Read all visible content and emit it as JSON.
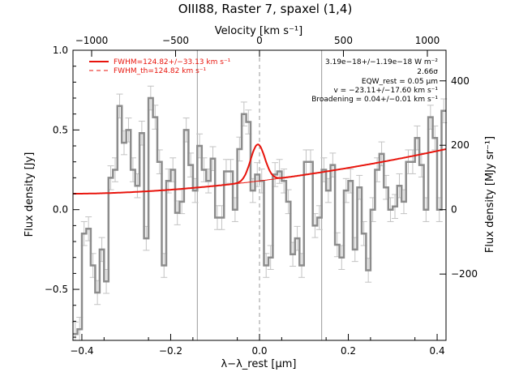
{
  "chart_data": {
    "type": "line",
    "title": "OIII88, Raster 7, spaxel (1,4)",
    "xlabel": "λ−λ_rest [μm]",
    "ylabel": "Flux density [Jy]",
    "ylabel_right": "Flux density [MJy sr⁻¹]",
    "xlabel_top": "Velocity [km s⁻¹]",
    "xlim": [
      -0.42,
      0.42
    ],
    "ylim": [
      -0.82,
      1.0
    ],
    "x_ticks": [
      -0.4,
      -0.2,
      0.0,
      0.2,
      0.4
    ],
    "x_tick_labels": [
      "−0.4",
      "−0.2",
      "0.0",
      "0.2",
      "0.4"
    ],
    "y_ticks": [
      -0.5,
      0.0,
      0.5,
      1.0
    ],
    "y_tick_labels": [
      "−0.5",
      "0.0",
      "0.5",
      "1.0"
    ],
    "top_ticks_x": [
      -0.378,
      -0.189,
      0.0,
      0.189,
      0.378
    ],
    "top_tick_labels": [
      "−1000",
      "−500",
      "0",
      "500",
      "1000"
    ],
    "right_ticks_y": [
      -0.5,
      -0.0,
      0.5,
      1.0
    ],
    "right_ticks_y_values": [
      -0.404,
      0.0,
      0.404,
      0.808
    ],
    "right_tick_labels": [
      "−200",
      "0",
      "200",
      "400"
    ],
    "vertical_lines_x": [
      -0.14,
      0.14
    ],
    "rest_line_x": 0.0,
    "series": [
      {
        "name": "",
        "x": [
          -0.415,
          -0.405,
          -0.395,
          -0.385,
          -0.375,
          -0.365,
          -0.355,
          -0.345,
          -0.335,
          -0.325,
          -0.315,
          -0.305,
          -0.295,
          -0.285,
          -0.275,
          -0.265,
          -0.255,
          -0.245,
          -0.235,
          -0.225,
          -0.215,
          -0.205,
          -0.195,
          -0.185,
          -0.175,
          -0.165,
          -0.155,
          -0.145,
          -0.135,
          -0.125,
          -0.115,
          -0.105,
          -0.095,
          -0.085,
          -0.075,
          -0.065,
          -0.055,
          -0.045,
          -0.035,
          -0.025,
          -0.015,
          -0.005,
          0.005,
          0.015,
          0.025,
          0.035,
          0.045,
          0.055,
          0.065,
          0.075,
          0.085,
          0.095,
          0.105,
          0.115,
          0.125,
          0.135,
          0.145,
          0.155,
          0.165,
          0.175,
          0.185,
          0.195,
          0.205,
          0.215,
          0.225,
          0.235,
          0.245,
          0.255,
          0.265,
          0.275,
          0.285,
          0.295,
          0.305,
          0.315,
          0.325,
          0.335,
          0.345,
          0.355,
          0.365,
          0.375,
          0.385,
          0.395,
          0.405,
          0.415
        ],
        "y": [
          -0.78,
          -0.75,
          -0.15,
          -0.12,
          -0.35,
          -0.52,
          -0.25,
          -0.45,
          0.2,
          0.25,
          0.65,
          0.42,
          0.5,
          0.25,
          0.15,
          0.48,
          -0.18,
          0.7,
          0.58,
          0.3,
          -0.35,
          0.18,
          0.25,
          -0.02,
          0.05,
          0.5,
          0.28,
          0.12,
          0.4,
          0.25,
          0.18,
          0.32,
          -0.05,
          -0.05,
          0.24,
          0.24,
          0.0,
          0.38,
          0.6,
          0.55,
          0.12,
          0.22,
          0.18,
          -0.35,
          -0.3,
          0.22,
          0.24,
          0.18,
          0.05,
          -0.28,
          -0.18,
          -0.35,
          0.3,
          0.3,
          -0.1,
          -0.05,
          0.25,
          0.12,
          0.28,
          -0.22,
          -0.3,
          0.12,
          0.18,
          -0.25,
          0.14,
          -0.15,
          -0.38,
          0.0,
          0.25,
          0.35,
          0.14,
          0.0,
          0.02,
          0.15,
          0.05,
          0.3,
          0.3,
          0.45,
          0.28,
          0.0,
          0.58,
          0.45,
          0.0,
          0.62
        ],
        "error": 0.075
      },
      {
        "name": "FWHM=124.82+/−33.13 km s⁻¹",
        "type": "fit",
        "baseline": {
          "a": 0.1,
          "b": 0.28,
          "c": 0.8
        },
        "gaussian": {
          "amplitude": 0.23,
          "center": -0.004,
          "sigma": 0.016
        }
      },
      {
        "name": "FWHM_th=124.82 km s⁻¹",
        "type": "fit-theoretical"
      }
    ],
    "legend_position": "top-left",
    "annotations": [
      "3.19e−18+/−1.19e−18 W m⁻²",
      "2.66σ",
      "EQW_rest = 0.05 μm",
      "v = −23.11+/−17.60 km s⁻¹",
      "Broadening = 0.04+/−0.01 km s⁻¹"
    ],
    "colors": {
      "data": "#8c8c8c",
      "error": "#c3c3c3",
      "fit": "#e8140c",
      "axes": "#000000",
      "vline": "#9a9a9a"
    }
  }
}
